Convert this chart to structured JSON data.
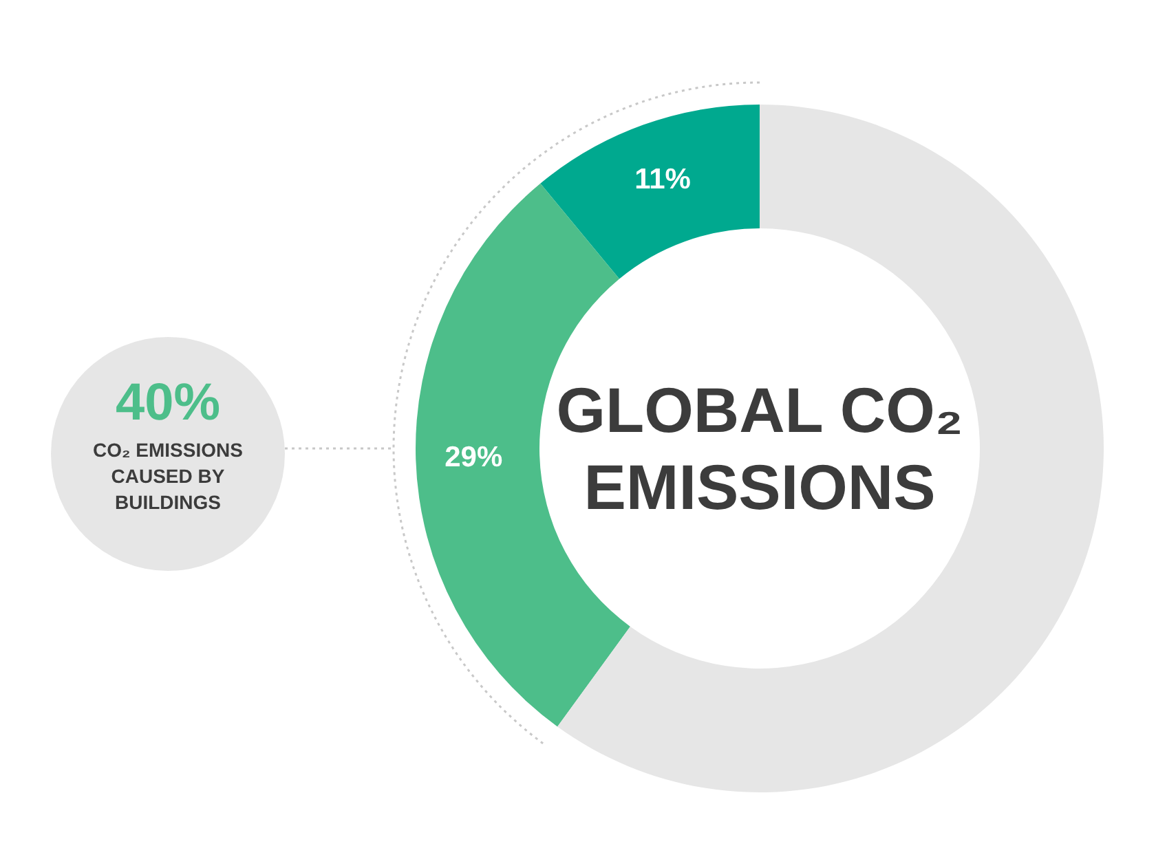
{
  "chart_data": {
    "type": "donut",
    "title": "GLOBAL CO₂ EMISSIONS",
    "categories": [
      null,
      null,
      null
    ],
    "values": [
      11,
      29,
      60
    ],
    "colors": [
      "#00a98f",
      "#4dbe8a",
      "#e6e6e6"
    ],
    "value_labels": [
      "11%",
      "29%",
      null
    ],
    "annotations": [
      "40%",
      "CO₂ EMISSIONS CAUSED BY BUILDINGS"
    ]
  }
}
